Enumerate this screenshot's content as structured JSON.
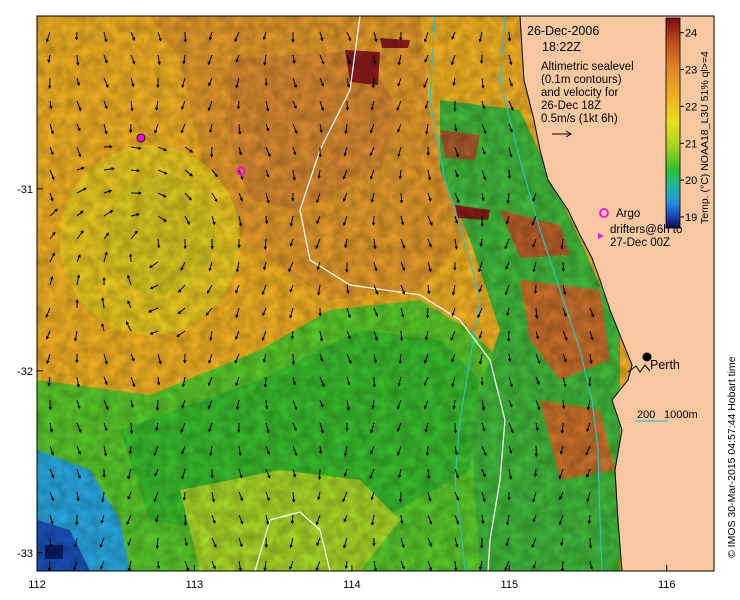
{
  "chart_data": {
    "type": "map",
    "title": "",
    "date": "26-Dec-2006",
    "time": "18:22Z",
    "description_lines": [
      "Altimetric sealevel",
      "(0.1m contours)",
      "and velocity for",
      "26-Dec 18Z",
      "0.5m/s (1kt 6h)"
    ],
    "x_ticks": [
      "112",
      "113",
      "114",
      "115",
      "116"
    ],
    "x_tick_values": [
      112,
      113,
      114,
      115,
      116
    ],
    "y_ticks": [
      "-31",
      "-32",
      "-33"
    ],
    "y_tick_values": [
      -31,
      -32,
      -33
    ],
    "xlim": [
      112,
      116.3
    ],
    "ylim": [
      -33.1,
      -30.05
    ],
    "colorbar": {
      "label": "Temp. (°C) NOAA18_L3U 51% ql>=4",
      "ticks": [
        "24",
        "23",
        "22",
        "21",
        "20",
        "19"
      ],
      "tick_values": [
        24,
        23,
        22,
        21,
        20,
        19
      ],
      "range": [
        18.7,
        24.4
      ]
    },
    "legend": {
      "argo_label": "Argo",
      "drifter_label_1": "drifters@6h to",
      "drifter_label_2": "27-Dec 00Z"
    },
    "argo_floats": [
      {
        "lon": 112.68,
        "lat": -30.78
      },
      {
        "lon": 113.28,
        "lat": -30.96
      }
    ],
    "city": {
      "name": "Perth",
      "lon": 115.86,
      "lat": -31.95
    },
    "depth_contours_label": {
      "shallow": "200",
      "deep": "1000m"
    },
    "credit": "© IMOS 30-Mar-2015 04:57:44 Hobart time",
    "colors": {
      "land": "#f8c9a0",
      "argo_marker": "#ff00ff",
      "sealevel_contour": "#ffffff",
      "isobath_200": "#30c0c0",
      "isobath_1000": "#30c0c0"
    }
  }
}
